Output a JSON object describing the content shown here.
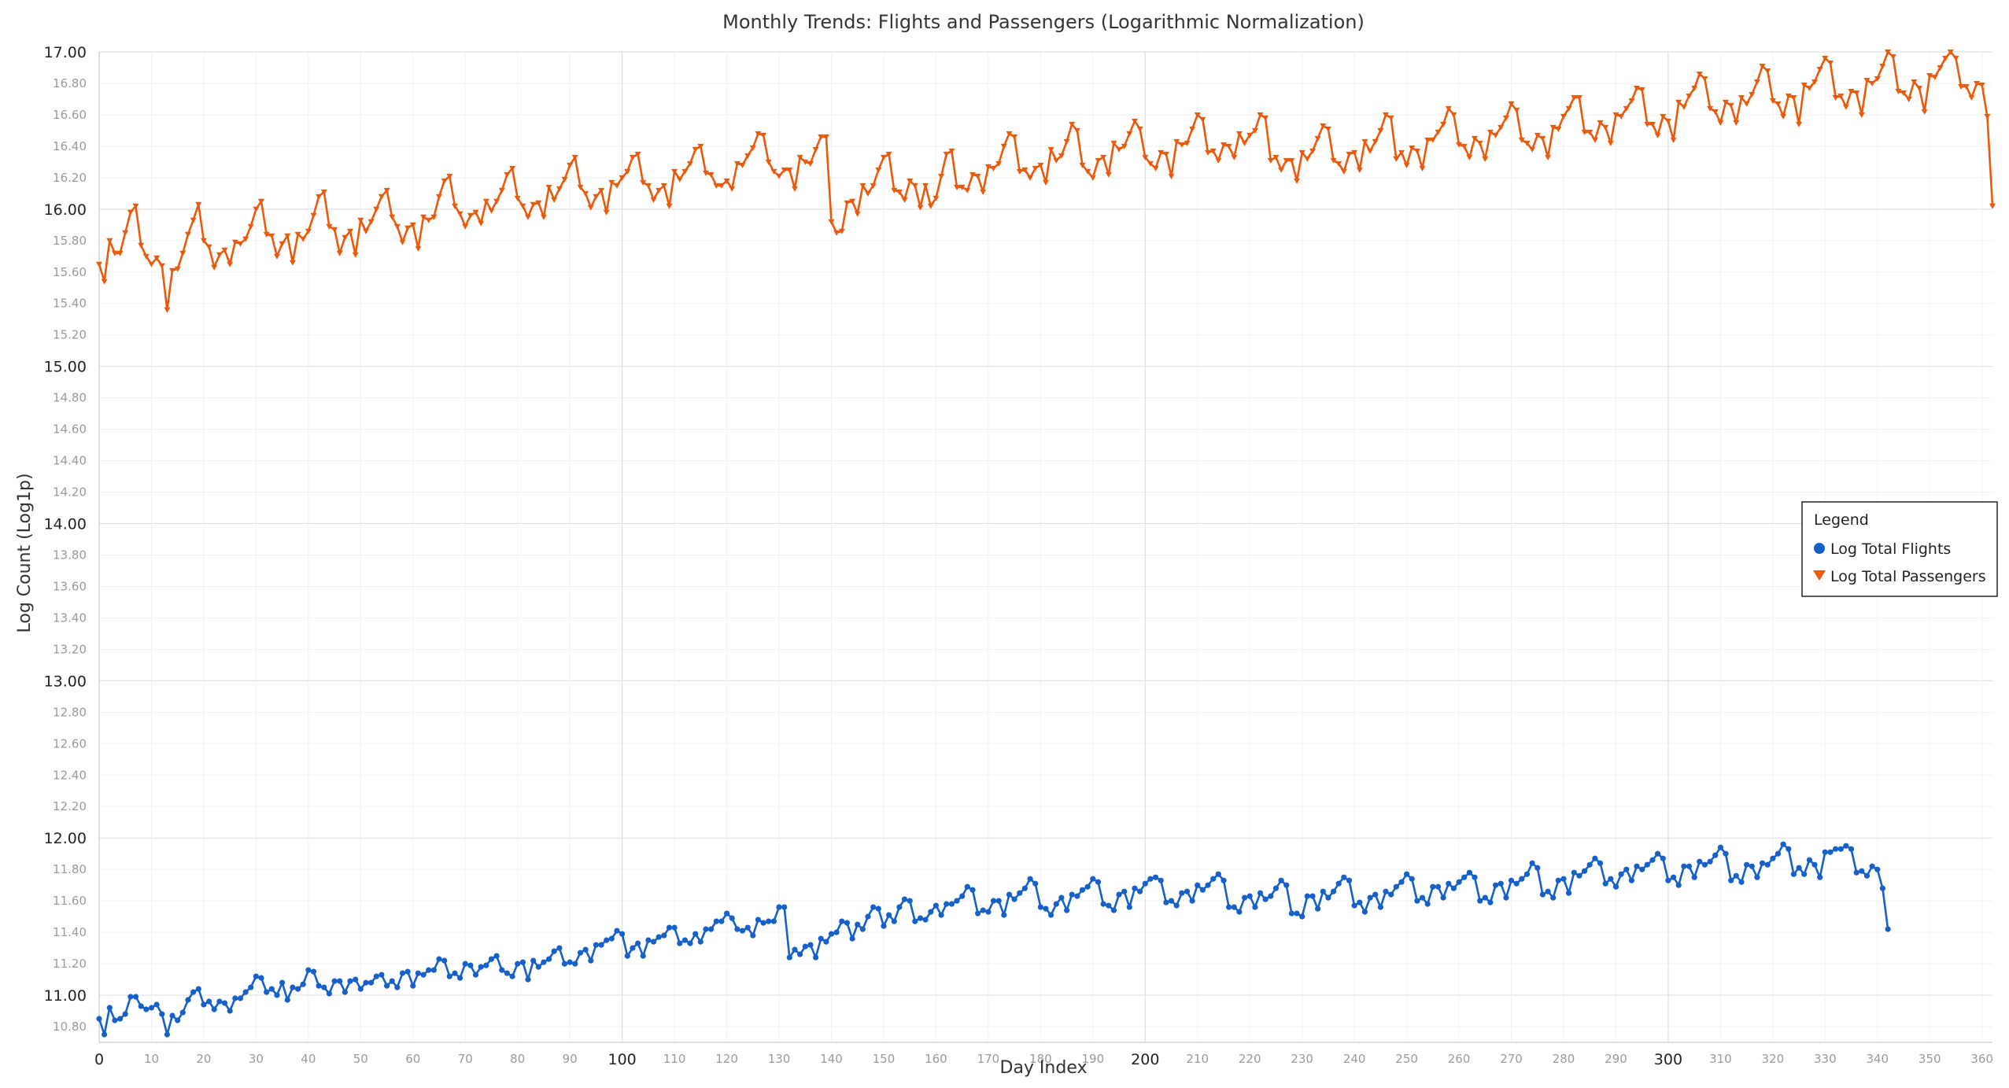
{
  "chart_data": {
    "type": "line",
    "title": "Monthly Trends: Flights and Passengers (Logarithmic Normalization)",
    "xlabel": "Day Index",
    "ylabel": "Log Count (Log1p)",
    "xlim": [
      0,
      362
    ],
    "ylim": [
      10.7,
      17.0
    ],
    "x_major_ticks": [
      "0",
      "100",
      "200",
      "300"
    ],
    "x_minor_ticks": [
      "10",
      "20",
      "30",
      "40",
      "50",
      "60",
      "70",
      "80",
      "90",
      "110",
      "120",
      "130",
      "140",
      "150",
      "160",
      "170",
      "180",
      "190",
      "210",
      "220",
      "230",
      "240",
      "250",
      "260",
      "270",
      "280",
      "290",
      "310",
      "320",
      "330",
      "340",
      "350",
      "360"
    ],
    "y_major_ticks": [
      "11.00",
      "12.00",
      "13.00",
      "14.00",
      "15.00",
      "16.00",
      "17.00"
    ],
    "y_minor_ticks": [
      "10.80",
      "11.20",
      "11.40",
      "11.60",
      "11.80",
      "12.20",
      "12.40",
      "12.60",
      "12.80",
      "13.20",
      "13.40",
      "13.60",
      "13.80",
      "14.20",
      "14.40",
      "14.60",
      "14.80",
      "15.20",
      "15.40",
      "15.60",
      "15.80",
      "16.20",
      "16.40",
      "16.60",
      "16.80"
    ],
    "grid": true,
    "legend": {
      "title": "Legend",
      "position": "right"
    },
    "series": [
      {
        "name": "Log Total Flights",
        "color": "#1560c9",
        "marker": "circle",
        "x_start": 0,
        "x_step": 1,
        "values": [
          10.85,
          10.75,
          10.92,
          10.84,
          10.85,
          10.88,
          10.99,
          10.99,
          10.93,
          10.91,
          10.92,
          10.94,
          10.88,
          10.75,
          10.87,
          10.84,
          10.89,
          10.97,
          11.02,
          11.04,
          10.94,
          10.96,
          10.91,
          10.96,
          10.95,
          10.9,
          10.98,
          10.98,
          11.02,
          11.05,
          11.12,
          11.11,
          11.02,
          11.04,
          11.0,
          11.08,
          10.97,
          11.05,
          11.04,
          11.07,
          11.16,
          11.15,
          11.06,
          11.05,
          11.01,
          11.09,
          11.09,
          11.02,
          11.09,
          11.1,
          11.04,
          11.08,
          11.08,
          11.12,
          11.13,
          11.06,
          11.09,
          11.05,
          11.14,
          11.15,
          11.06,
          11.14,
          11.13,
          11.16,
          11.16,
          11.23,
          11.22,
          11.12,
          11.14,
          11.11,
          11.2,
          11.19,
          11.13,
          11.18,
          11.19,
          11.23,
          11.25,
          11.16,
          11.14,
          11.12,
          11.2,
          11.21,
          11.1,
          11.22,
          11.18,
          11.21,
          11.23,
          11.28,
          11.3,
          11.2,
          11.21,
          11.2,
          11.27,
          11.29,
          11.22,
          11.32,
          11.32,
          11.35,
          11.36,
          11.41,
          11.39,
          11.25,
          11.3,
          11.33,
          11.25,
          11.35,
          11.34,
          11.37,
          11.38,
          11.43,
          11.43,
          11.33,
          11.35,
          11.33,
          11.39,
          11.34,
          11.42,
          11.42,
          11.47,
          11.47,
          11.52,
          11.49,
          11.42,
          11.41,
          11.43,
          11.38,
          11.48,
          11.46,
          11.47,
          11.47,
          11.56,
          11.56,
          11.24,
          11.29,
          11.26,
          11.31,
          11.32,
          11.24,
          11.36,
          11.34,
          11.39,
          11.4,
          11.47,
          11.46,
          11.36,
          11.45,
          11.42,
          11.5,
          11.56,
          11.55,
          11.44,
          11.51,
          11.47,
          11.56,
          11.61,
          11.6,
          11.47,
          11.49,
          11.48,
          11.53,
          11.57,
          11.51,
          11.58,
          11.58,
          11.6,
          11.63,
          11.69,
          11.67,
          11.52,
          11.54,
          11.53,
          11.6,
          11.6,
          11.51,
          11.64,
          11.61,
          11.65,
          11.68,
          11.74,
          11.71,
          11.56,
          11.55,
          11.51,
          11.58,
          11.62,
          11.54,
          11.64,
          11.63,
          11.67,
          11.69,
          11.74,
          11.72,
          11.58,
          11.57,
          11.54,
          11.64,
          11.66,
          11.56,
          11.68,
          11.66,
          11.71,
          11.74,
          11.75,
          11.73,
          11.59,
          11.6,
          11.57,
          11.65,
          11.66,
          11.6,
          11.7,
          11.67,
          11.7,
          11.74,
          11.77,
          11.73,
          11.56,
          11.56,
          11.53,
          11.62,
          11.63,
          11.56,
          11.65,
          11.61,
          11.63,
          11.68,
          11.73,
          11.7,
          11.52,
          11.52,
          11.5,
          11.63,
          11.63,
          11.55,
          11.66,
          11.62,
          11.66,
          11.71,
          11.75,
          11.73,
          11.57,
          11.59,
          11.53,
          11.62,
          11.64,
          11.56,
          11.66,
          11.64,
          11.69,
          11.72,
          11.77,
          11.74,
          11.6,
          11.62,
          11.58,
          11.69,
          11.69,
          11.62,
          11.71,
          11.68,
          11.72,
          11.75,
          11.78,
          11.75,
          11.6,
          11.62,
          11.59,
          11.7,
          11.71,
          11.62,
          11.73,
          11.71,
          11.74,
          11.77,
          11.84,
          11.81,
          11.64,
          11.66,
          11.62,
          11.73,
          11.74,
          11.65,
          11.78,
          11.76,
          11.79,
          11.83,
          11.87,
          11.84,
          11.71,
          11.74,
          11.69,
          11.77,
          11.8,
          11.73,
          11.82,
          11.8,
          11.83,
          11.86,
          11.9,
          11.87,
          11.73,
          11.75,
          11.7,
          11.82,
          11.82,
          11.75,
          11.85,
          11.83,
          11.85,
          11.89,
          11.94,
          11.9,
          11.73,
          11.76,
          11.72,
          11.83,
          11.82,
          11.75,
          11.84,
          11.83,
          11.87,
          11.9,
          11.96,
          11.93,
          11.77,
          11.81,
          11.77,
          11.86,
          11.83,
          11.75,
          11.91,
          11.91,
          11.93,
          11.93,
          11.95,
          11.93,
          11.78,
          11.79,
          11.76,
          11.82,
          11.8,
          11.68,
          11.42
        ]
      },
      {
        "name": "Log Total Passengers",
        "color": "#ea5a0c",
        "marker": "triangle-down",
        "x_start": 0,
        "x_step": 1,
        "values": [
          15.65,
          15.54,
          15.8,
          15.72,
          15.72,
          15.85,
          15.98,
          16.02,
          15.77,
          15.7,
          15.65,
          15.69,
          15.64,
          15.36,
          15.61,
          15.62,
          15.72,
          15.84,
          15.93,
          16.03,
          15.8,
          15.76,
          15.63,
          15.71,
          15.74,
          15.65,
          15.79,
          15.78,
          15.81,
          15.89,
          16.0,
          16.05,
          15.84,
          15.83,
          15.7,
          15.78,
          15.83,
          15.66,
          15.84,
          15.81,
          15.86,
          15.96,
          16.08,
          16.11,
          15.89,
          15.87,
          15.72,
          15.82,
          15.86,
          15.71,
          15.93,
          15.86,
          15.92,
          16.0,
          16.08,
          16.12,
          15.95,
          15.89,
          15.79,
          15.88,
          15.9,
          15.75,
          15.95,
          15.93,
          15.95,
          16.08,
          16.18,
          16.21,
          16.02,
          15.97,
          15.89,
          15.96,
          15.98,
          15.91,
          16.05,
          15.99,
          16.05,
          16.12,
          16.22,
          16.26,
          16.07,
          16.02,
          15.95,
          16.03,
          16.04,
          15.95,
          16.14,
          16.06,
          16.13,
          16.19,
          16.28,
          16.33,
          16.14,
          16.1,
          16.01,
          16.08,
          16.12,
          15.98,
          16.17,
          16.15,
          16.2,
          16.24,
          16.33,
          16.35,
          16.17,
          16.15,
          16.06,
          16.12,
          16.15,
          16.02,
          16.24,
          16.19,
          16.24,
          16.29,
          16.38,
          16.4,
          16.23,
          16.22,
          16.15,
          16.15,
          16.18,
          16.13,
          16.29,
          16.28,
          16.34,
          16.39,
          16.48,
          16.47,
          16.3,
          16.24,
          16.21,
          16.25,
          16.25,
          16.13,
          16.33,
          16.3,
          16.29,
          16.38,
          16.46,
          16.46,
          15.92,
          15.85,
          15.86,
          16.04,
          16.05,
          15.97,
          16.15,
          16.1,
          16.15,
          16.25,
          16.33,
          16.35,
          16.12,
          16.11,
          16.06,
          16.18,
          16.15,
          16.01,
          16.15,
          16.02,
          16.07,
          16.21,
          16.35,
          16.37,
          16.14,
          16.14,
          16.12,
          16.22,
          16.21,
          16.11,
          16.27,
          16.26,
          16.29,
          16.4,
          16.48,
          16.46,
          16.24,
          16.25,
          16.2,
          16.26,
          16.28,
          16.17,
          16.38,
          16.31,
          16.34,
          16.43,
          16.54,
          16.5,
          16.28,
          16.24,
          16.2,
          16.31,
          16.33,
          16.22,
          16.42,
          16.38,
          16.4,
          16.48,
          16.56,
          16.51,
          16.33,
          16.29,
          16.26,
          16.36,
          16.35,
          16.21,
          16.43,
          16.41,
          16.42,
          16.51,
          16.6,
          16.57,
          16.36,
          16.37,
          16.31,
          16.41,
          16.4,
          16.33,
          16.48,
          16.42,
          16.47,
          16.5,
          16.6,
          16.58,
          16.31,
          16.33,
          16.25,
          16.31,
          16.31,
          16.18,
          16.36,
          16.32,
          16.37,
          16.45,
          16.53,
          16.51,
          16.31,
          16.29,
          16.24,
          16.35,
          16.36,
          16.25,
          16.43,
          16.37,
          16.43,
          16.5,
          16.6,
          16.58,
          16.32,
          16.36,
          16.28,
          16.39,
          16.37,
          16.26,
          16.44,
          16.44,
          16.49,
          16.54,
          16.64,
          16.6,
          16.41,
          16.4,
          16.33,
          16.45,
          16.42,
          16.32,
          16.49,
          16.47,
          16.52,
          16.58,
          16.67,
          16.63,
          16.44,
          16.42,
          16.38,
          16.47,
          16.45,
          16.33,
          16.52,
          16.51,
          16.59,
          16.64,
          16.71,
          16.71,
          16.49,
          16.49,
          16.44,
          16.55,
          16.52,
          16.42,
          16.6,
          16.59,
          16.64,
          16.69,
          16.77,
          16.76,
          16.54,
          16.54,
          16.47,
          16.59,
          16.56,
          16.44,
          16.68,
          16.65,
          16.72,
          16.77,
          16.86,
          16.83,
          16.64,
          16.62,
          16.55,
          16.68,
          16.66,
          16.55,
          16.71,
          16.67,
          16.73,
          16.81,
          16.91,
          16.88,
          16.69,
          16.67,
          16.59,
          16.72,
          16.71,
          16.54,
          16.79,
          16.77,
          16.81,
          16.89,
          16.96,
          16.93,
          16.71,
          16.72,
          16.65,
          16.75,
          16.74,
          16.6,
          16.82,
          16.8,
          16.83,
          16.91,
          17.0,
          16.97,
          16.75,
          16.74,
          16.7,
          16.81,
          16.77,
          16.62,
          16.85,
          16.84,
          16.9,
          16.96,
          17.0,
          16.96,
          16.78,
          16.78,
          16.71,
          16.8,
          16.79,
          16.59,
          16.02
        ]
      }
    ]
  }
}
